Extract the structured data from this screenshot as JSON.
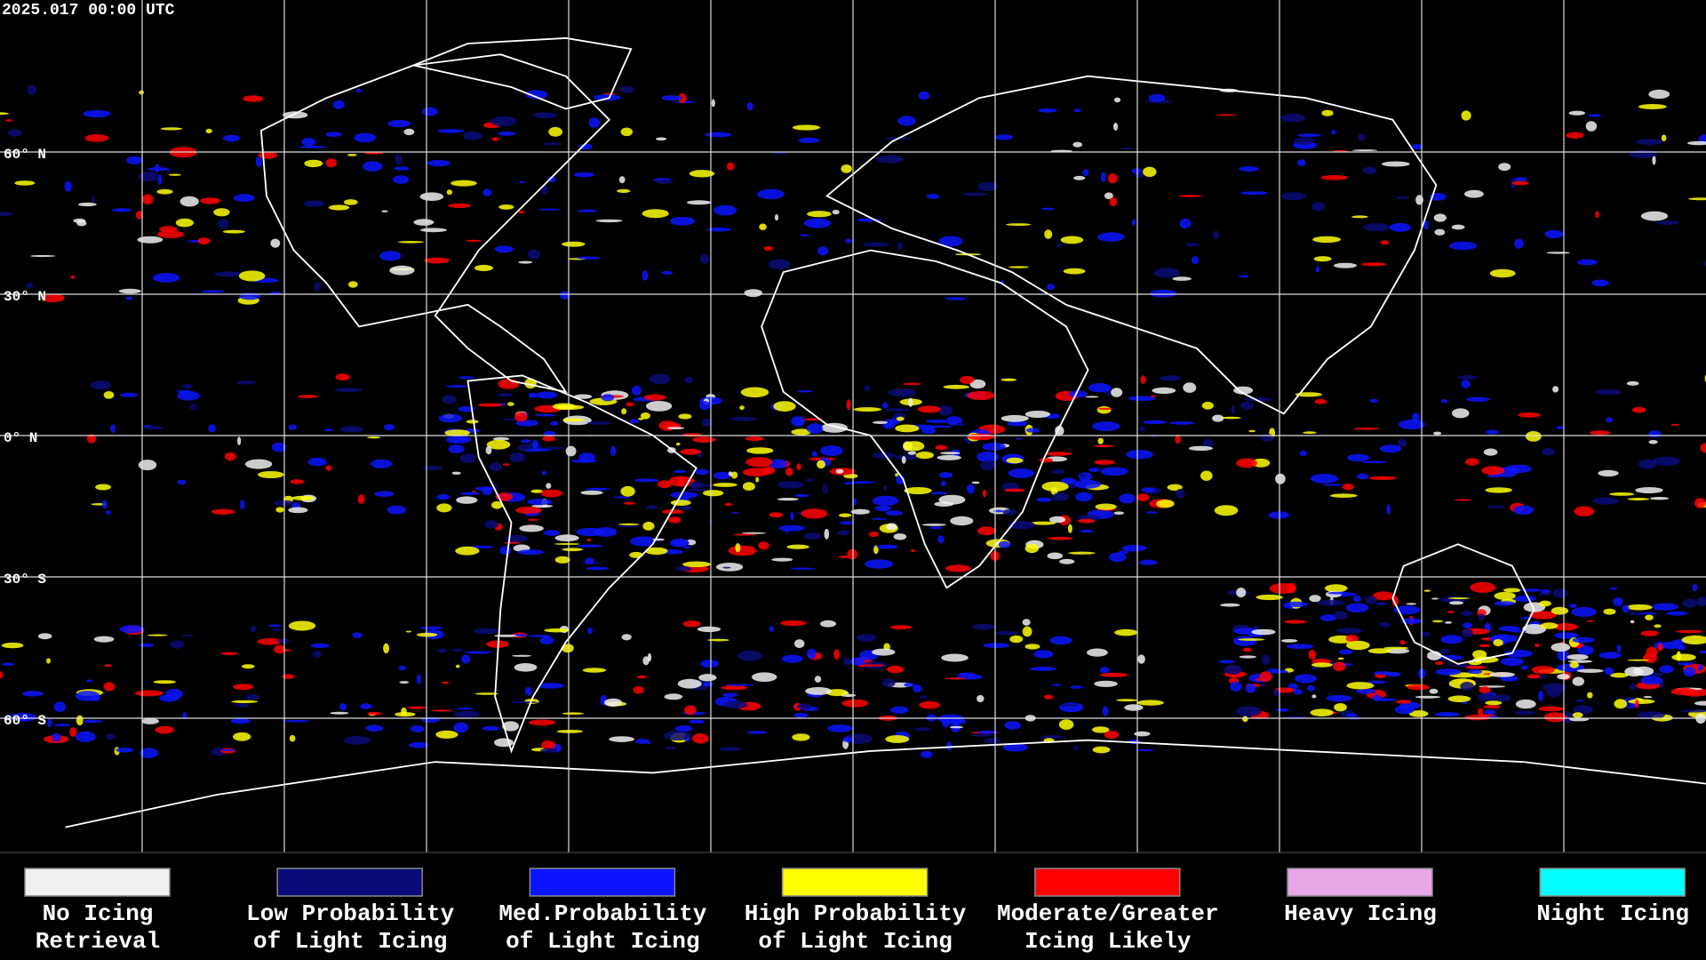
{
  "header": {
    "timestamp": "2025.017 00:00 UTC"
  },
  "latitude_labels": [
    "60° N",
    "30° N",
    "0° N",
    "30° S",
    "60° S"
  ],
  "legend": [
    {
      "color": "#f0f0f0",
      "lines": [
        "No Icing",
        "Retrieval"
      ]
    },
    {
      "color": "#0a0a78",
      "lines": [
        "Low Probability",
        "of Light Icing"
      ]
    },
    {
      "color": "#0a14ff",
      "lines": [
        "Med.Probability",
        "of Light Icing"
      ]
    },
    {
      "color": "#ffff00",
      "lines": [
        "High Probability",
        "of Light Icing"
      ]
    },
    {
      "color": "#ff0000",
      "lines": [
        "Moderate/Greater",
        "Icing Likely"
      ]
    },
    {
      "color": "#e8a8e8",
      "lines": [
        "Heavy Icing"
      ]
    },
    {
      "color": "#00ffff",
      "lines": [
        "Night Icing"
      ]
    }
  ]
}
